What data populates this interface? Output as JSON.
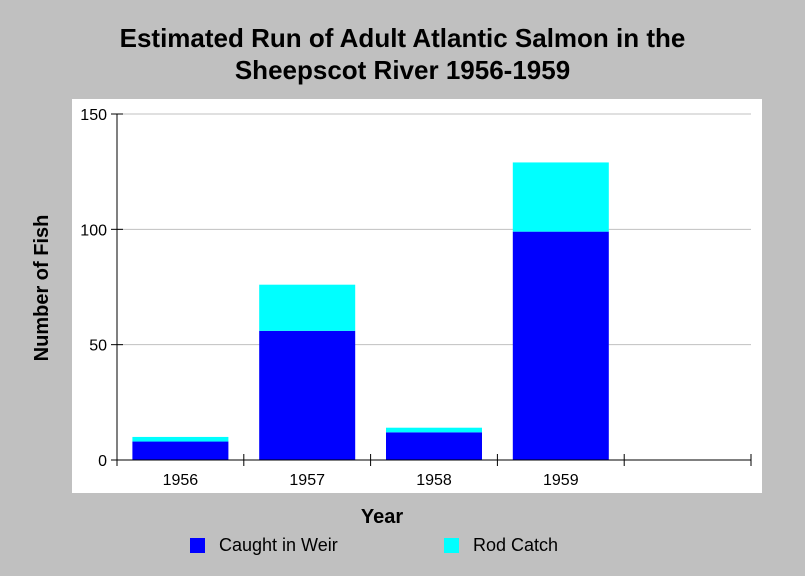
{
  "chart_data": {
    "type": "bar",
    "stacked": true,
    "title": [
      "Estimated Run of Adult Atlantic Salmon in the",
      "Sheepscot River 1956-1959"
    ],
    "xlabel": "Year",
    "ylabel": "Number of Fish",
    "categories": [
      "1956",
      "1957",
      "1958",
      "1959",
      ""
    ],
    "ylim": [
      0,
      150
    ],
    "yticks": [
      0,
      50,
      100,
      150
    ],
    "grid": true,
    "legend_position": "bottom",
    "series": [
      {
        "name": "Caught in Weir",
        "color": "#0000ff",
        "values": [
          8,
          56,
          12,
          99,
          null
        ]
      },
      {
        "name": "Rod Catch",
        "color": "#00ffff",
        "values": [
          2,
          20,
          2,
          30,
          null
        ]
      }
    ]
  },
  "colors": {
    "page_background": "#c0c0c0",
    "plot_background": "#ffffff",
    "gridline": "#c0c0c0"
  }
}
